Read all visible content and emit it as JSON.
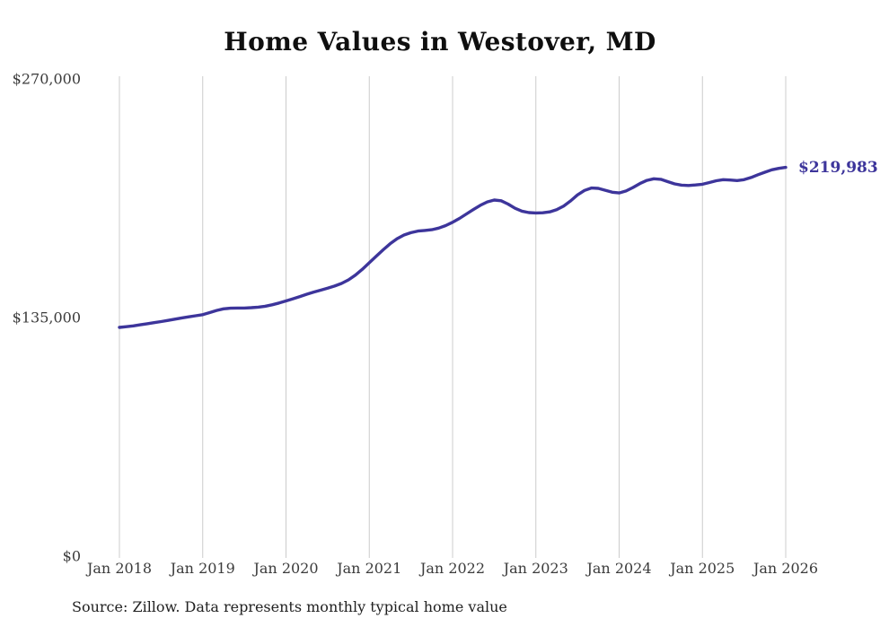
{
  "chart_data": {
    "type": "line",
    "title": "Home Values in Westover, MD",
    "series_name": "Monthly typical home value",
    "x_start": "2018-01",
    "x_step_months": 1,
    "x_end": "2026-01",
    "categories": [
      "Jan 2018",
      "Jan 2019",
      "Jan 2020",
      "Jan 2021",
      "Jan 2022",
      "Jan 2023",
      "Jan 2024",
      "Jan 2025",
      "Jan 2026"
    ],
    "values": [
      129400,
      129800,
      130300,
      130900,
      131500,
      132100,
      132700,
      133400,
      134100,
      134800,
      135400,
      136000,
      136600,
      137800,
      139000,
      139900,
      140300,
      140400,
      140400,
      140600,
      140900,
      141400,
      142200,
      143200,
      144400,
      145600,
      146900,
      148200,
      149400,
      150500,
      151600,
      152800,
      154300,
      156300,
      159000,
      162300,
      166000,
      169700,
      173300,
      176700,
      179600,
      181700,
      183000,
      183900,
      184300,
      184700,
      185600,
      187000,
      188900,
      191100,
      193600,
      196100,
      198500,
      200400,
      201500,
      201100,
      199200,
      196800,
      195200,
      194400,
      194200,
      194300,
      194800,
      196000,
      198100,
      201000,
      204400,
      206900,
      208300,
      208100,
      207000,
      205900,
      205500,
      206600,
      208600,
      210800,
      212600,
      213500,
      213200,
      211900,
      210600,
      209900,
      209700,
      210000,
      210400,
      211400,
      212400,
      213000,
      212800,
      212500,
      213000,
      214200,
      215800,
      217200,
      218600,
      219400,
      219983
    ],
    "ylim": [
      0,
      270000
    ],
    "y_ticks": [
      {
        "label": "$0",
        "value": 0
      },
      {
        "label": "$135,000",
        "value": 135000
      },
      {
        "label": "$270,000",
        "value": 270000
      }
    ],
    "end_label": "$219,983",
    "grid": "vertical-only",
    "legend": "none",
    "colors": {
      "line": "#3d359b",
      "end_label": "#3d359b",
      "grid": "#cccccc",
      "title": "#0f0f0f",
      "axis_text": "#3b3b3b",
      "background": "#ffffff"
    }
  },
  "notes": {
    "source": "Source: Zillow. Data represents monthly typical home value"
  }
}
